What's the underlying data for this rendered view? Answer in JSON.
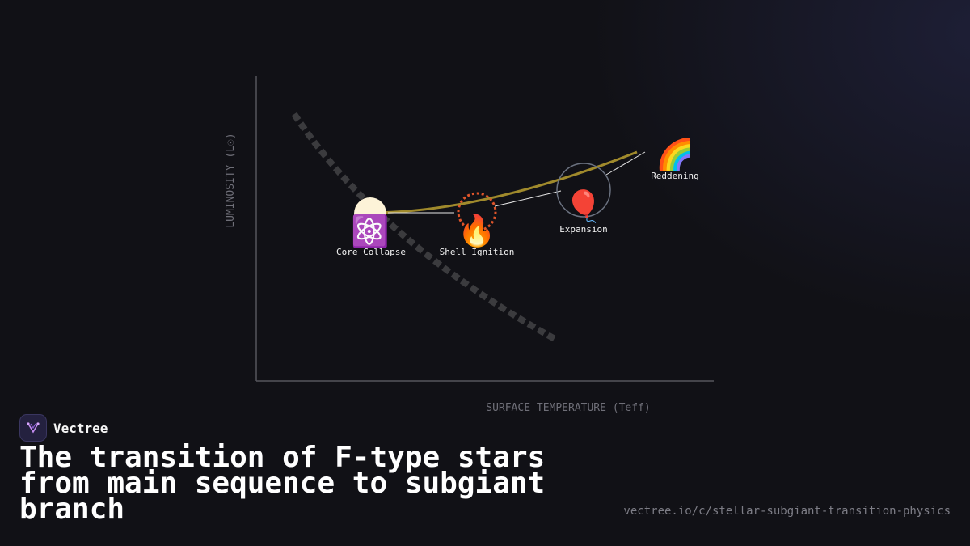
{
  "diagram": {
    "x_axis_label": "SURFACE TEMPERATURE (Teff)",
    "y_axis_label": "LUMINOSITY (L☉)",
    "stages": [
      {
        "label": "Core Collapse",
        "icon": "⚛️",
        "icon_name": "atom-icon"
      },
      {
        "label": "Shell Ignition",
        "icon": "🔥",
        "icon_name": "fire-icon"
      },
      {
        "label": "Expansion",
        "icon": "🎈",
        "icon_name": "balloon-icon"
      },
      {
        "label": "Reddening",
        "icon": "🌈",
        "icon_name": "rainbow-icon"
      }
    ],
    "colors": {
      "track": "#a08a2c",
      "main_sequence": "#3b3b3e",
      "shell_ring": "#e0552a",
      "axis": "#55555c"
    }
  },
  "brand": {
    "name": "Vectree"
  },
  "title": "The transition of F-type stars from main sequence to subgiant branch",
  "url": "vectree.io/c/stellar-subgiant-transition-physics"
}
